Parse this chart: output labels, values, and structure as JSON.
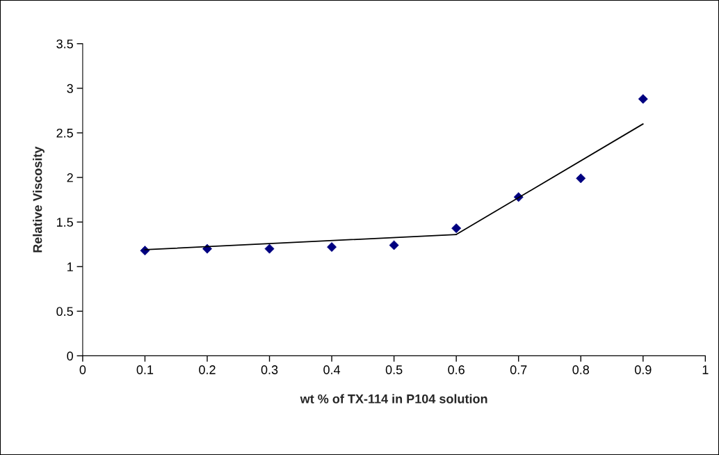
{
  "chart_data": {
    "type": "scatter",
    "xlabel": "wt % of TX-114 in P104 solution",
    "ylabel": "Relative Viscosity",
    "series": [
      {
        "marker": "diamond",
        "color": "#000080",
        "x": [
          0.1,
          0.2,
          0.3,
          0.4,
          0.5,
          0.6,
          0.7,
          0.8,
          0.9
        ],
        "values": [
          1.18,
          1.2,
          1.2,
          1.22,
          1.24,
          1.43,
          1.78,
          1.99,
          2.88
        ]
      },
      {
        "type": "line",
        "color": "#000000",
        "x": [
          0.1,
          0.6
        ],
        "values": [
          1.19,
          1.36
        ]
      },
      {
        "type": "line",
        "color": "#000000",
        "x": [
          0.6,
          0.9
        ],
        "values": [
          1.36,
          2.6
        ]
      }
    ],
    "xlim": [
      0,
      1
    ],
    "xticks": [
      0,
      0.1,
      0.2,
      0.3,
      0.4,
      0.5,
      0.6,
      0.7,
      0.8,
      0.9,
      1
    ],
    "ylim": [
      0,
      3.5
    ],
    "yticks": [
      0,
      0.5,
      1,
      1.5,
      2,
      2.5,
      3,
      3.5
    ]
  }
}
